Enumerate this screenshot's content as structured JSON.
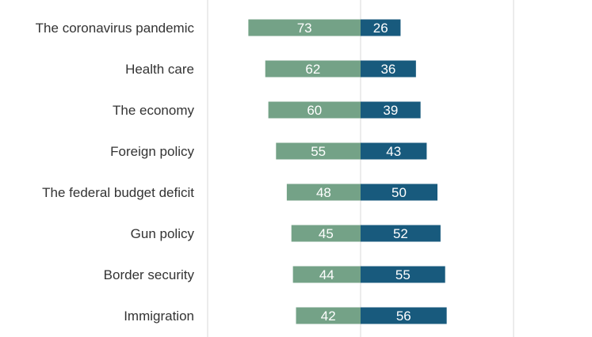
{
  "chart_data": {
    "type": "bar",
    "orientation": "horizontal-diverging",
    "categories": [
      "The coronavirus pandemic",
      "Health care",
      "The economy",
      "Foreign policy",
      "The federal budget deficit",
      "Gun policy",
      "Border security",
      "Immigration"
    ],
    "series": [
      {
        "values": [
          73,
          62,
          60,
          55,
          48,
          45,
          44,
          42
        ],
        "color": "#74a287",
        "direction": "left"
      },
      {
        "values": [
          26,
          36,
          39,
          43,
          50,
          52,
          55,
          56
        ],
        "color": "#185a7d",
        "direction": "right"
      }
    ],
    "grid": true,
    "legend": "none"
  }
}
